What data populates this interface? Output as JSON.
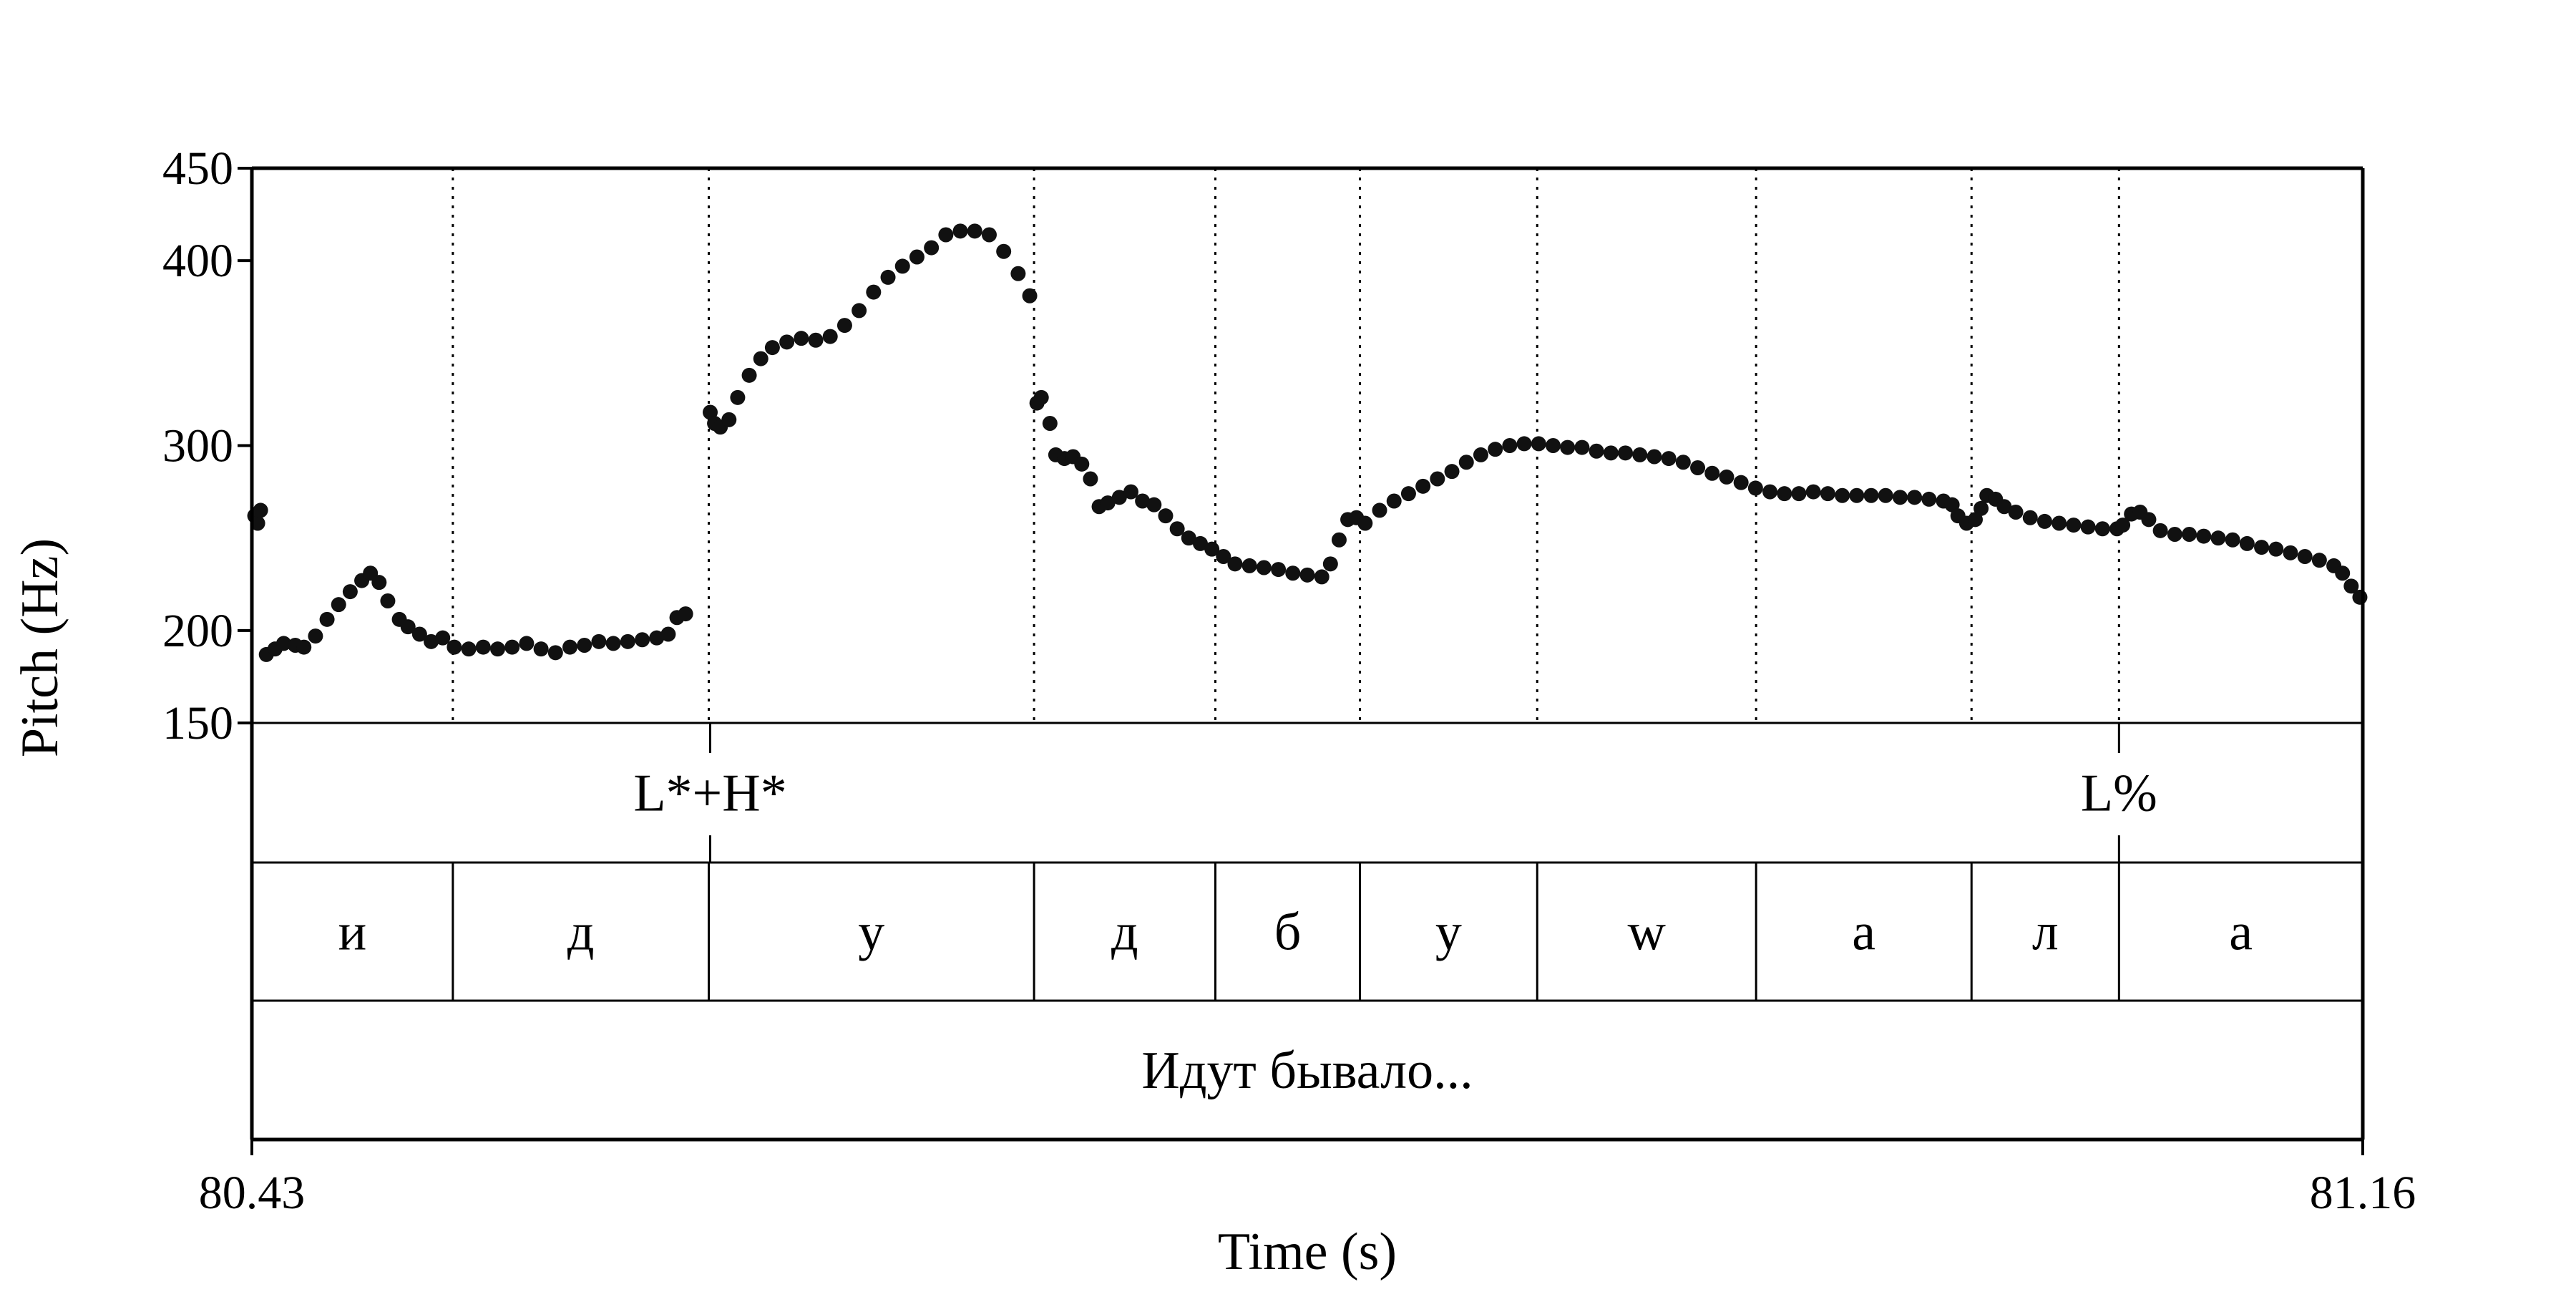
{
  "chart_data": {
    "type": "scatter",
    "xlabel": "Time (s)",
    "ylabel": "Pitch (Hz)",
    "xlim": [
      80.43,
      81.16
    ],
    "ylim": [
      150,
      450
    ],
    "x_tick_labels": [
      "80.43",
      "81.16"
    ],
    "y_ticks": [
      150,
      200,
      300,
      400,
      450
    ],
    "y_tick_labels": [
      "150",
      "200",
      "300",
      "400",
      "450"
    ],
    "grid": false,
    "legend": "none",
    "point_color": "#111111",
    "boundaries": [
      80.4995,
      80.588,
      80.7005,
      80.7632,
      80.8132,
      80.8745,
      80.9502,
      81.0247,
      81.0757
    ],
    "tiers": [
      {
        "name": "tones",
        "labels": [
          {
            "t": 80.5885,
            "text": "L*+H*"
          },
          {
            "t": 81.0757,
            "text": "L%"
          }
        ]
      },
      {
        "name": "segments",
        "intervals": [
          {
            "start": 80.43,
            "end": 80.4995,
            "text": "и"
          },
          {
            "start": 80.4995,
            "end": 80.588,
            "text": "д"
          },
          {
            "start": 80.588,
            "end": 80.7005,
            "text": "у"
          },
          {
            "start": 80.7005,
            "end": 80.7632,
            "text": "д"
          },
          {
            "start": 80.7632,
            "end": 80.8132,
            "text": "б"
          },
          {
            "start": 80.8132,
            "end": 80.8745,
            "text": "у"
          },
          {
            "start": 80.8745,
            "end": 80.9502,
            "text": "w"
          },
          {
            "start": 80.9502,
            "end": 81.0247,
            "text": "а"
          },
          {
            "start": 81.0247,
            "end": 81.0757,
            "text": "л"
          },
          {
            "start": 81.0757,
            "end": 81.16,
            "text": "а"
          }
        ]
      },
      {
        "name": "words",
        "intervals": [
          {
            "start": 80.43,
            "end": 81.16,
            "text": "Идут бывало..."
          }
        ]
      }
    ],
    "pitch_track": [
      [
        80.431,
        262
      ],
      [
        80.432,
        258
      ],
      [
        80.433,
        265
      ],
      [
        80.435,
        187
      ],
      [
        80.438,
        190
      ],
      [
        80.441,
        193
      ],
      [
        80.445,
        192
      ],
      [
        80.448,
        191
      ],
      [
        80.452,
        197
      ],
      [
        80.456,
        206
      ],
      [
        80.46,
        214
      ],
      [
        80.464,
        221
      ],
      [
        80.468,
        227
      ],
      [
        80.471,
        231
      ],
      [
        80.474,
        226
      ],
      [
        80.477,
        216
      ],
      [
        80.481,
        206
      ],
      [
        80.484,
        202
      ],
      [
        80.488,
        198
      ],
      [
        80.492,
        194
      ],
      [
        80.496,
        196
      ],
      [
        80.5,
        191
      ],
      [
        80.505,
        190
      ],
      [
        80.51,
        191
      ],
      [
        80.515,
        190
      ],
      [
        80.52,
        191
      ],
      [
        80.525,
        193
      ],
      [
        80.53,
        190
      ],
      [
        80.535,
        188
      ],
      [
        80.54,
        191
      ],
      [
        80.545,
        192
      ],
      [
        80.55,
        194
      ],
      [
        80.555,
        193
      ],
      [
        80.56,
        194
      ],
      [
        80.565,
        195
      ],
      [
        80.57,
        196
      ],
      [
        80.574,
        198
      ],
      [
        80.577,
        207
      ],
      [
        80.58,
        209
      ],
      [
        80.5885,
        318
      ],
      [
        80.59,
        312
      ],
      [
        80.592,
        310
      ],
      [
        80.595,
        314
      ],
      [
        80.598,
        326
      ],
      [
        80.602,
        338
      ],
      [
        80.606,
        347
      ],
      [
        80.61,
        353
      ],
      [
        80.615,
        356
      ],
      [
        80.62,
        358
      ],
      [
        80.625,
        357
      ],
      [
        80.63,
        359
      ],
      [
        80.635,
        365
      ],
      [
        80.64,
        373
      ],
      [
        80.645,
        383
      ],
      [
        80.65,
        391
      ],
      [
        80.655,
        397
      ],
      [
        80.66,
        402
      ],
      [
        80.665,
        407
      ],
      [
        80.67,
        414
      ],
      [
        80.675,
        416
      ],
      [
        80.68,
        416
      ],
      [
        80.685,
        414
      ],
      [
        80.69,
        405
      ],
      [
        80.695,
        393
      ],
      [
        80.699,
        381
      ],
      [
        80.7015,
        323
      ],
      [
        80.703,
        326
      ],
      [
        80.706,
        312
      ],
      [
        80.708,
        295
      ],
      [
        80.711,
        293
      ],
      [
        80.714,
        294
      ],
      [
        80.717,
        290
      ],
      [
        80.72,
        282
      ],
      [
        80.723,
        267
      ],
      [
        80.726,
        269
      ],
      [
        80.73,
        272
      ],
      [
        80.734,
        275
      ],
      [
        80.738,
        270
      ],
      [
        80.742,
        268
      ],
      [
        80.746,
        262
      ],
      [
        80.75,
        255
      ],
      [
        80.754,
        250
      ],
      [
        80.758,
        247
      ],
      [
        80.762,
        244
      ],
      [
        80.766,
        240
      ],
      [
        80.77,
        236
      ],
      [
        80.775,
        235
      ],
      [
        80.78,
        234
      ],
      [
        80.785,
        233
      ],
      [
        80.79,
        231
      ],
      [
        80.795,
        230
      ],
      [
        80.8,
        229
      ],
      [
        80.803,
        236
      ],
      [
        80.806,
        249
      ],
      [
        80.809,
        260
      ],
      [
        80.812,
        261
      ],
      [
        80.815,
        258
      ],
      [
        80.82,
        265
      ],
      [
        80.825,
        270
      ],
      [
        80.83,
        274
      ],
      [
        80.835,
        278
      ],
      [
        80.84,
        282
      ],
      [
        80.845,
        286
      ],
      [
        80.85,
        291
      ],
      [
        80.855,
        295
      ],
      [
        80.86,
        298
      ],
      [
        80.865,
        300
      ],
      [
        80.87,
        301
      ],
      [
        80.875,
        301
      ],
      [
        80.88,
        300
      ],
      [
        80.885,
        299
      ],
      [
        80.89,
        299
      ],
      [
        80.895,
        297
      ],
      [
        80.9,
        296
      ],
      [
        80.905,
        296
      ],
      [
        80.91,
        295
      ],
      [
        80.915,
        294
      ],
      [
        80.92,
        293
      ],
      [
        80.925,
        291
      ],
      [
        80.93,
        288
      ],
      [
        80.935,
        285
      ],
      [
        80.94,
        283
      ],
      [
        80.945,
        280
      ],
      [
        80.95,
        277
      ],
      [
        80.955,
        275
      ],
      [
        80.96,
        274
      ],
      [
        80.965,
        274
      ],
      [
        80.97,
        275
      ],
      [
        80.975,
        274
      ],
      [
        80.98,
        273
      ],
      [
        80.985,
        273
      ],
      [
        80.99,
        273
      ],
      [
        80.995,
        273
      ],
      [
        81.0,
        272
      ],
      [
        81.005,
        272
      ],
      [
        81.01,
        271
      ],
      [
        81.015,
        270
      ],
      [
        81.018,
        268
      ],
      [
        81.02,
        262
      ],
      [
        81.023,
        258
      ],
      [
        81.026,
        260
      ],
      [
        81.028,
        266
      ],
      [
        81.03,
        273
      ],
      [
        81.033,
        271
      ],
      [
        81.036,
        267
      ],
      [
        81.04,
        264
      ],
      [
        81.045,
        261
      ],
      [
        81.05,
        259
      ],
      [
        81.055,
        258
      ],
      [
        81.06,
        257
      ],
      [
        81.065,
        256
      ],
      [
        81.07,
        255
      ],
      [
        81.075,
        255
      ],
      [
        81.077,
        257
      ],
      [
        81.08,
        263
      ],
      [
        81.083,
        264
      ],
      [
        81.086,
        260
      ],
      [
        81.09,
        254
      ],
      [
        81.095,
        252
      ],
      [
        81.1,
        252
      ],
      [
        81.105,
        251
      ],
      [
        81.11,
        250
      ],
      [
        81.115,
        249
      ],
      [
        81.12,
        247
      ],
      [
        81.125,
        245
      ],
      [
        81.13,
        244
      ],
      [
        81.135,
        242
      ],
      [
        81.14,
        240
      ],
      [
        81.145,
        238
      ],
      [
        81.15,
        235
      ],
      [
        81.153,
        231
      ],
      [
        81.156,
        224
      ],
      [
        81.159,
        218
      ]
    ]
  }
}
